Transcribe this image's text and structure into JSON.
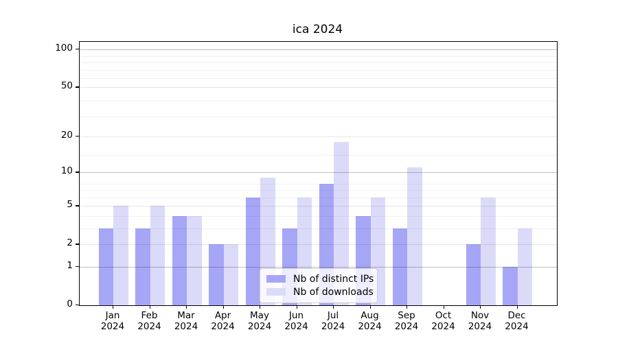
{
  "chart_data": {
    "type": "bar",
    "title": "ica 2024",
    "year": "2024",
    "months": [
      "Jan",
      "Feb",
      "Mar",
      "Apr",
      "May",
      "Jun",
      "Jul",
      "Aug",
      "Sep",
      "Oct",
      "Nov",
      "Dec"
    ],
    "categories": [
      "Jan 2024",
      "Feb 2024",
      "Mar 2024",
      "Apr 2024",
      "May 2024",
      "Jun 2024",
      "Jul 2024",
      "Aug 2024",
      "Sep 2024",
      "Oct 2024",
      "Nov 2024",
      "Dec 2024"
    ],
    "series": [
      {
        "name": "Nb of distinct IPs",
        "color": "#a6a6f7",
        "values": [
          3,
          3,
          4,
          2,
          6,
          3,
          8,
          4,
          3,
          0,
          2,
          1
        ]
      },
      {
        "name": "Nb of downloads",
        "color": "#dbdbf9",
        "values": [
          5,
          5,
          4,
          2,
          9,
          6,
          18,
          6,
          11,
          0,
          6,
          3
        ]
      }
    ],
    "xlabel": "",
    "ylabel": "",
    "y_scale": "log1p",
    "yticks": [
      0,
      1,
      2,
      5,
      10,
      20,
      50,
      100
    ],
    "ylim": [
      0,
      115
    ],
    "grid": true,
    "legend_position": "lower center"
  }
}
